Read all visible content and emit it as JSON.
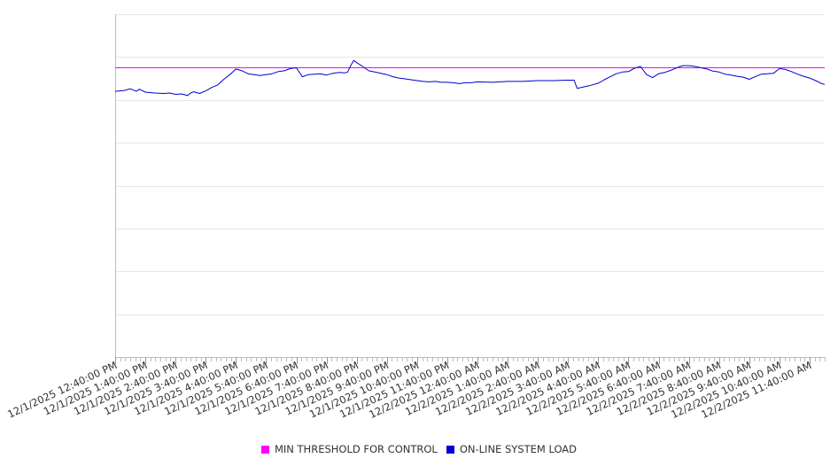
{
  "chart_data": {
    "type": "line",
    "title": "",
    "xlabel": "",
    "ylabel": "",
    "y_tick_labels_visible": false,
    "grid": "horizontal",
    "legend_position": "bottom",
    "x_tick_labels": [
      "12/1/2025 12:40:00 PM",
      "12/1/2025 1:40:00 PM",
      "12/1/2025 2:40:00 PM",
      "12/1/2025 3:40:00 PM",
      "12/1/2025 4:40:00 PM",
      "12/1/2025 5:40:00 PM",
      "12/1/2025 6:40:00 PM",
      "12/1/2025 7:40:00 PM",
      "12/1/2025 8:40:00 PM",
      "12/1/2025 9:40:00 PM",
      "12/1/2025 10:40:00 PM",
      "12/1/2025 11:40:00 PM",
      "12/2/2025 12:40:00 AM",
      "12/2/2025 1:40:00 AM",
      "12/2/2025 2:40:00 AM",
      "12/2/2025 3:40:00 AM",
      "12/2/2025 4:40:00 AM",
      "12/2/2025 5:40:00 AM",
      "12/2/2025 6:40:00 AM",
      "12/2/2025 7:40:00 AM",
      "12/2/2025 8:40:00 AM",
      "12/2/2025 9:40:00 AM",
      "12/2/2025 10:40:00 AM",
      "12/2/2025 11:40:00 AM"
    ],
    "x_range_hours": [
      0,
      23.5
    ],
    "ylim": [
      0,
      80
    ],
    "series": [
      {
        "name": "MIN THRESHOLD FOR CONTROL",
        "color": "#ff00ff",
        "kind": "constant",
        "value": 67.5
      },
      {
        "name": "ON-LINE SYSTEM LOAD",
        "color": "#0000cc",
        "x_hours": [
          0,
          0.3,
          0.5,
          0.7,
          0.8,
          1.0,
          1.3,
          1.6,
          1.8,
          2.0,
          2.2,
          2.4,
          2.5,
          2.6,
          2.8,
          3.0,
          3.2,
          3.4,
          3.6,
          3.8,
          4.0,
          4.2,
          4.4,
          4.6,
          4.8,
          5.0,
          5.2,
          5.4,
          5.6,
          5.8,
          6.0,
          6.2,
          6.4,
          6.6,
          6.8,
          7.0,
          7.2,
          7.4,
          7.6,
          7.7,
          7.8,
          7.9,
          8.0,
          8.2,
          8.4,
          8.6,
          8.8,
          9.0,
          9.2,
          9.4,
          9.6,
          9.8,
          10.0,
          10.2,
          10.4,
          10.6,
          10.8,
          11.0,
          11.2,
          11.4,
          11.6,
          11.8,
          12.0,
          12.5,
          13.0,
          13.5,
          14.0,
          14.5,
          15.0,
          15.2,
          15.3,
          15.5,
          15.7,
          16.0,
          16.2,
          16.4,
          16.6,
          16.8,
          17.0,
          17.2,
          17.4,
          17.6,
          17.8,
          18.0,
          18.2,
          18.4,
          18.6,
          18.8,
          19.0,
          19.2,
          19.4,
          19.6,
          19.8,
          20.0,
          20.2,
          20.4,
          20.6,
          20.8,
          21.0,
          21.2,
          21.4,
          21.6,
          21.8,
          22.0,
          22.2,
          22.4,
          22.6,
          22.8,
          23.0,
          23.2,
          23.4,
          23.5
        ],
        "y_values": [
          62.0,
          62.2,
          62.6,
          62.0,
          62.5,
          61.8,
          61.6,
          61.5,
          61.6,
          61.3,
          61.4,
          61.0,
          61.6,
          61.9,
          61.5,
          62.1,
          62.9,
          63.5,
          64.8,
          65.9,
          67.2,
          66.8,
          66.1,
          65.9,
          65.7,
          65.9,
          66.1,
          66.6,
          66.8,
          67.3,
          67.5,
          65.4,
          65.9,
          66.0,
          66.1,
          65.8,
          66.2,
          66.4,
          66.3,
          66.5,
          68.0,
          69.2,
          68.7,
          67.8,
          66.8,
          66.5,
          66.2,
          65.9,
          65.4,
          65.1,
          64.9,
          64.7,
          64.5,
          64.3,
          64.2,
          64.3,
          64.1,
          64.1,
          64.0,
          63.8,
          64.0,
          64.0,
          64.2,
          64.1,
          64.3,
          64.3,
          64.5,
          64.5,
          64.6,
          64.6,
          62.7,
          63.0,
          63.3,
          63.9,
          64.7,
          65.4,
          66.1,
          66.5,
          66.6,
          67.4,
          67.8,
          65.9,
          65.2,
          66.1,
          66.4,
          66.9,
          67.5,
          68.0,
          68.0,
          67.8,
          67.5,
          67.2,
          66.7,
          66.5,
          66.0,
          65.8,
          65.5,
          65.3,
          64.8,
          65.4,
          66.0,
          66.1,
          66.2,
          67.3,
          67.1,
          66.6,
          66.0,
          65.5,
          65.1,
          64.5,
          63.8,
          63.6
        ]
      }
    ]
  },
  "legend": {
    "items": [
      {
        "label": "MIN THRESHOLD FOR CONTROL",
        "color": "#ff00ff"
      },
      {
        "label": "ON-LINE SYSTEM LOAD",
        "color": "#0000cc"
      }
    ]
  }
}
